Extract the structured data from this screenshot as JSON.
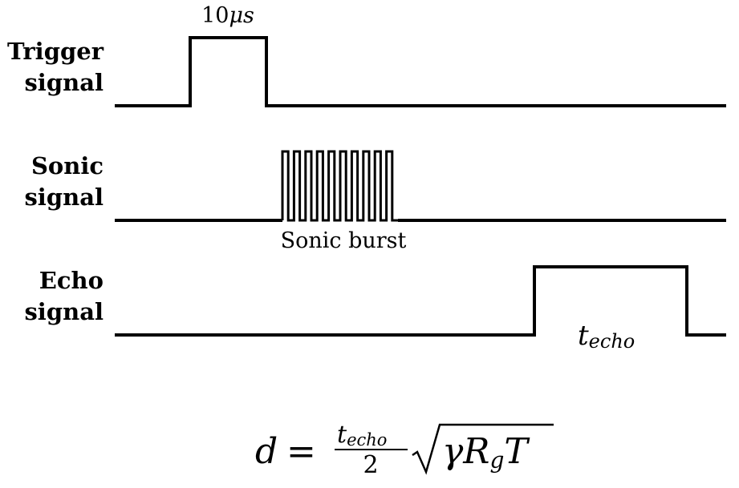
{
  "signals": [
    {
      "id": "trigger",
      "label_line1": "Trigger",
      "label_line2": "signal",
      "annotation": "10"
    },
    {
      "id": "sonic",
      "label_line1": "Sonic",
      "label_line2": "signal",
      "annotation": "Sonic burst"
    },
    {
      "id": "echo",
      "label_line1": "Echo",
      "label_line2": "signal",
      "annotation": "t"
    }
  ],
  "trigger_unit": "μs",
  "echo_subscript": "echo",
  "formula": {
    "lhs": "d",
    "eq": "=",
    "num_base": "t",
    "num_sub": "echo",
    "den": "2",
    "sqrt_gamma": "γ",
    "sqrt_R": "R",
    "sqrt_sub": "g",
    "sqrt_T": "T"
  },
  "sonic_burst_pulses": 10
}
